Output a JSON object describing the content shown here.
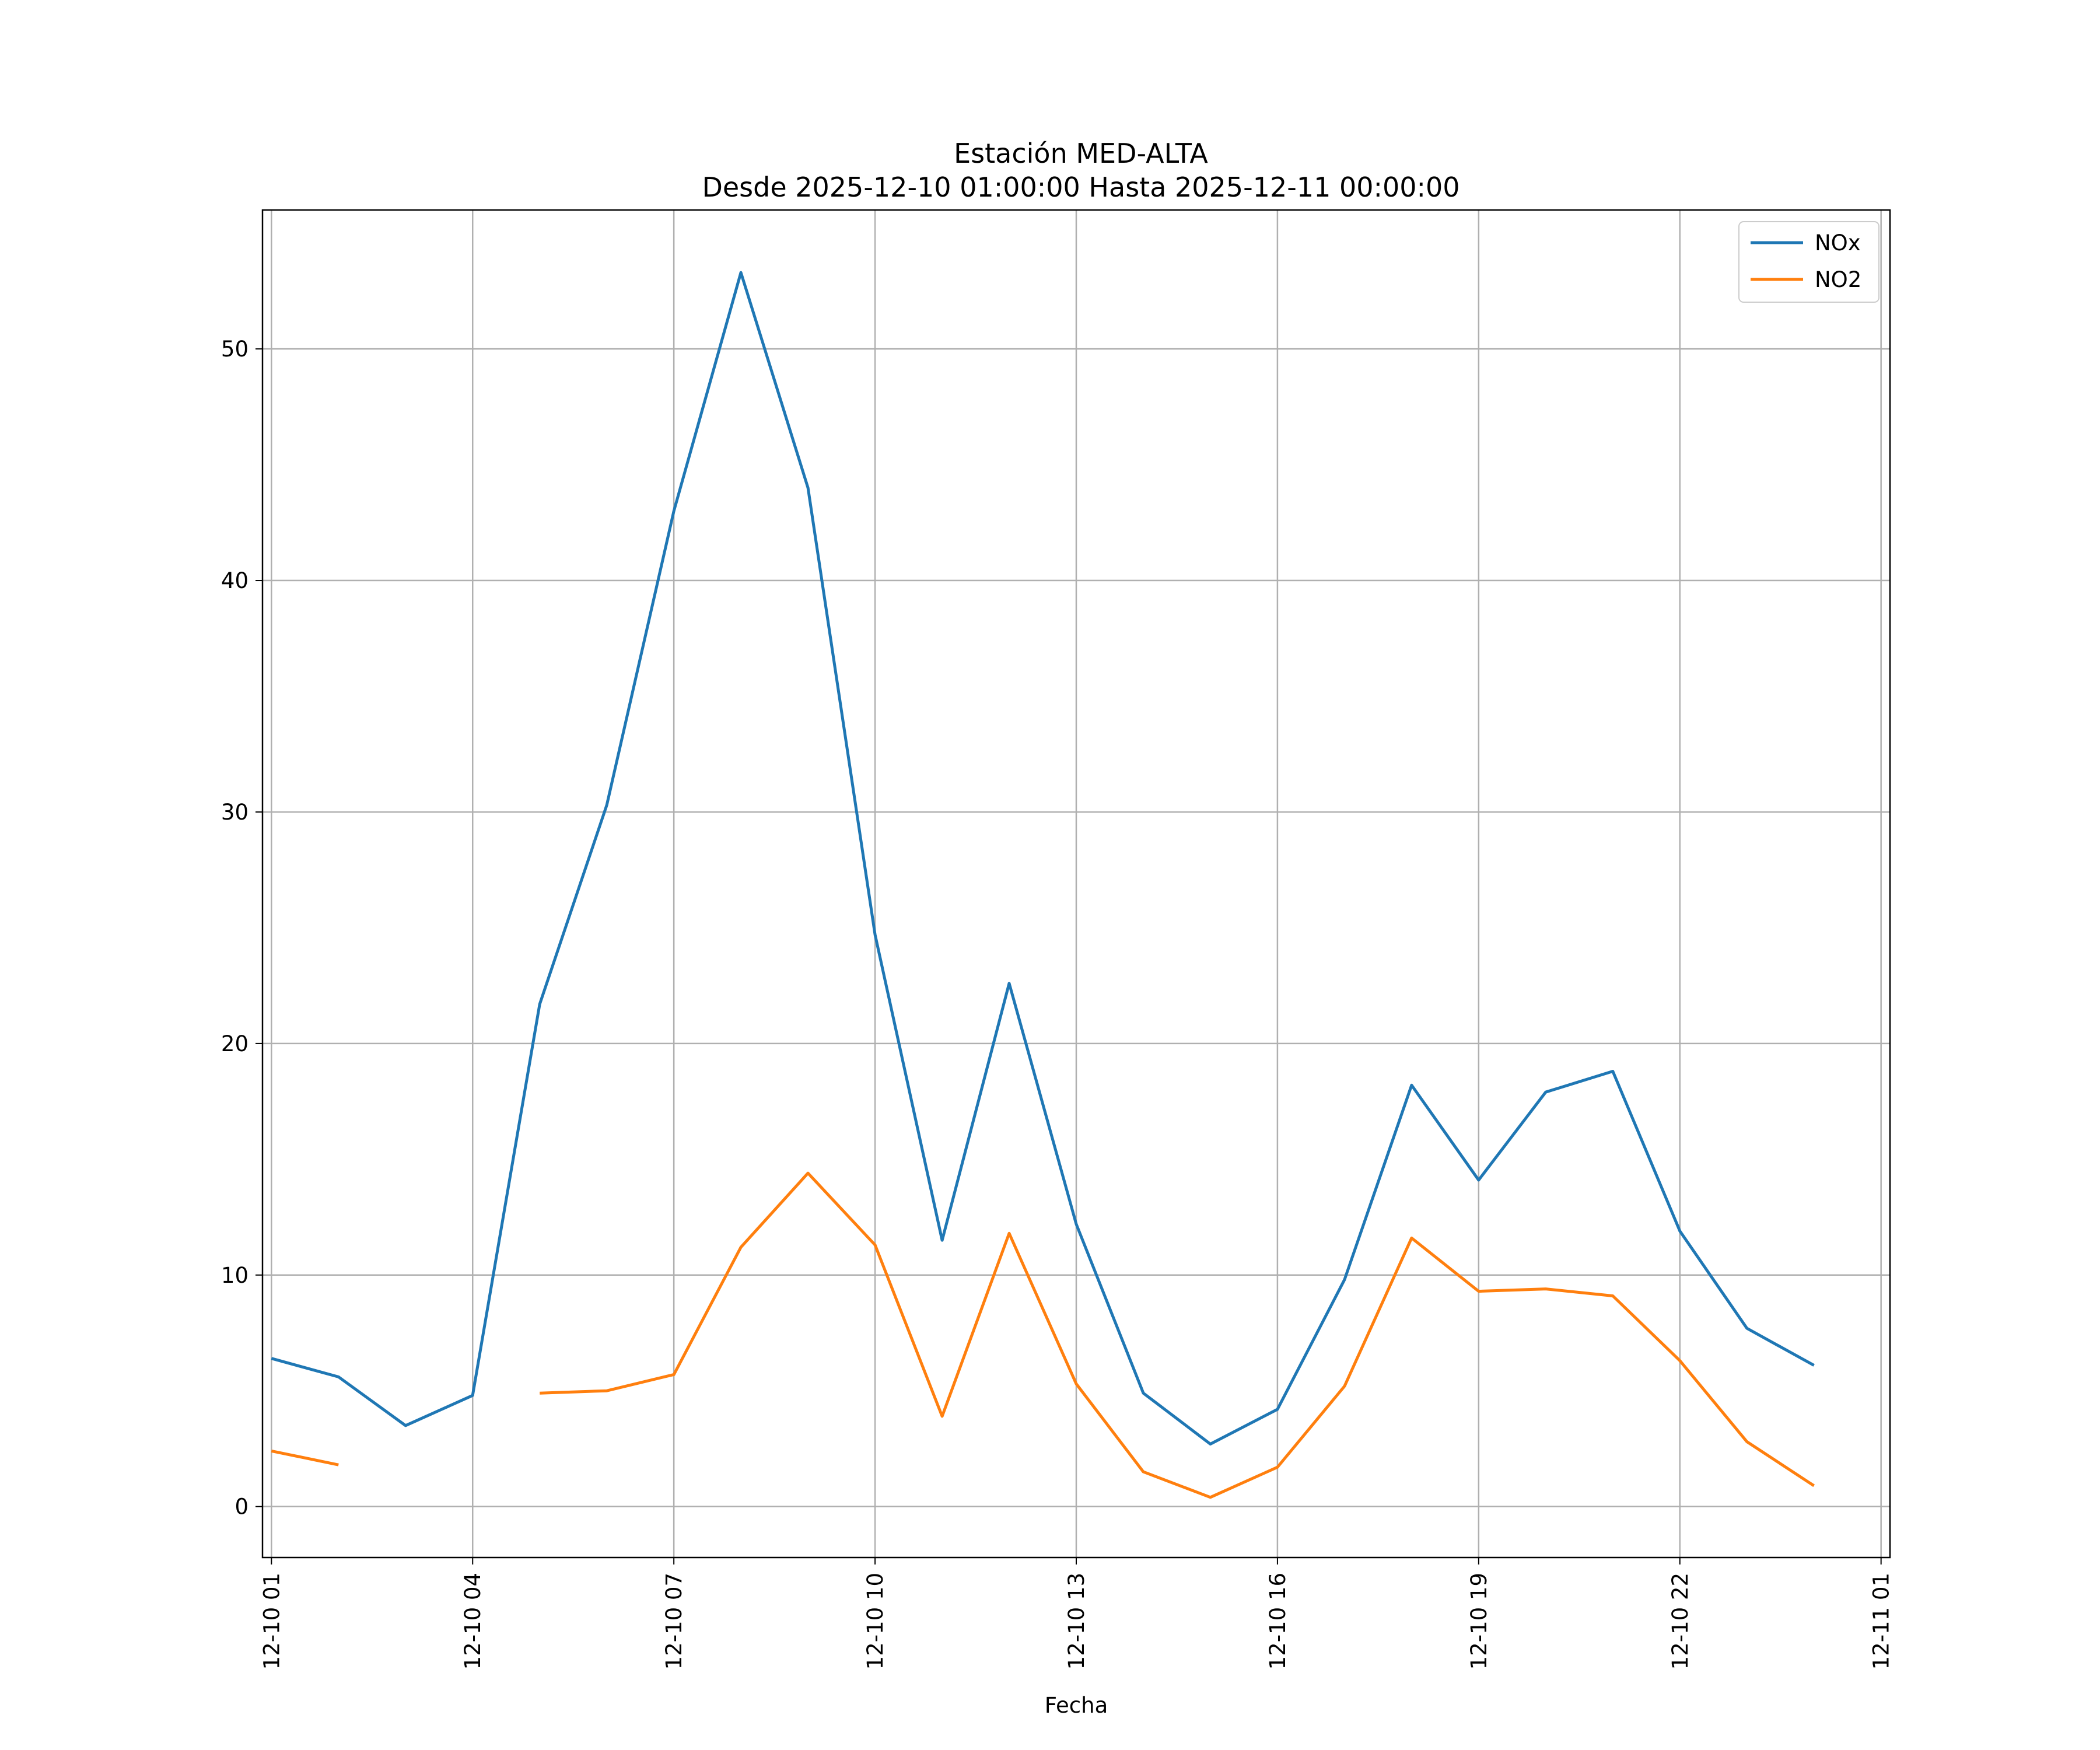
{
  "chart_data": {
    "type": "line",
    "title": "Estación MED-ALTA",
    "subtitle": "Desde 2025-12-10 01:00:00 Hasta 2025-12-11 00:00:00",
    "xlabel": "Fecha",
    "ylabel": "",
    "x": [
      "2025-12-10 01:00",
      "2025-12-10 02:00",
      "2025-12-10 03:00",
      "2025-12-10 04:00",
      "2025-12-10 05:00",
      "2025-12-10 06:00",
      "2025-12-10 07:00",
      "2025-12-10 08:00",
      "2025-12-10 09:00",
      "2025-12-10 10:00",
      "2025-12-10 11:00",
      "2025-12-10 12:00",
      "2025-12-10 13:00",
      "2025-12-10 14:00",
      "2025-12-10 15:00",
      "2025-12-10 16:00",
      "2025-12-10 17:00",
      "2025-12-10 18:00",
      "2025-12-10 19:00",
      "2025-12-10 20:00",
      "2025-12-10 21:00",
      "2025-12-10 22:00",
      "2025-12-10 23:00",
      "2025-12-11 00:00"
    ],
    "xlim": [
      "2025-12-10 00:52",
      "2025-12-11 01:08"
    ],
    "x_ticks": [
      "12-10 01",
      "12-10 04",
      "12-10 07",
      "12-10 10",
      "12-10 13",
      "12-10 16",
      "12-10 19",
      "12-10 22",
      "12-11 01"
    ],
    "x_tick_times": [
      "2025-12-10 01:00",
      "2025-12-10 04:00",
      "2025-12-10 07:00",
      "2025-12-10 10:00",
      "2025-12-10 13:00",
      "2025-12-10 16:00",
      "2025-12-10 19:00",
      "2025-12-10 22:00",
      "2025-12-11 01:00"
    ],
    "y_ticks": [
      0,
      10,
      20,
      30,
      40,
      50
    ],
    "ylim": [
      -2.2,
      56.0
    ],
    "grid": true,
    "legend_position": "top-right",
    "series": [
      {
        "name": "NOx",
        "color": "#1f77b4",
        "values": [
          6.4,
          5.6,
          3.5,
          4.8,
          21.7,
          30.3,
          43.0,
          53.3,
          44.0,
          24.7,
          11.5,
          22.6,
          12.2,
          4.9,
          2.7,
          4.2,
          9.8,
          18.2,
          14.1,
          17.9,
          18.8,
          11.9,
          7.7,
          6.1
        ]
      },
      {
        "name": "NO2",
        "color": "#ff7f0e",
        "values": [
          2.4,
          1.8,
          null,
          null,
          4.9,
          5.0,
          5.7,
          11.2,
          14.4,
          11.3,
          3.9,
          11.8,
          5.3,
          1.5,
          0.4,
          1.7,
          5.2,
          11.6,
          9.3,
          9.4,
          9.1,
          6.3,
          2.8,
          0.9
        ]
      }
    ]
  }
}
